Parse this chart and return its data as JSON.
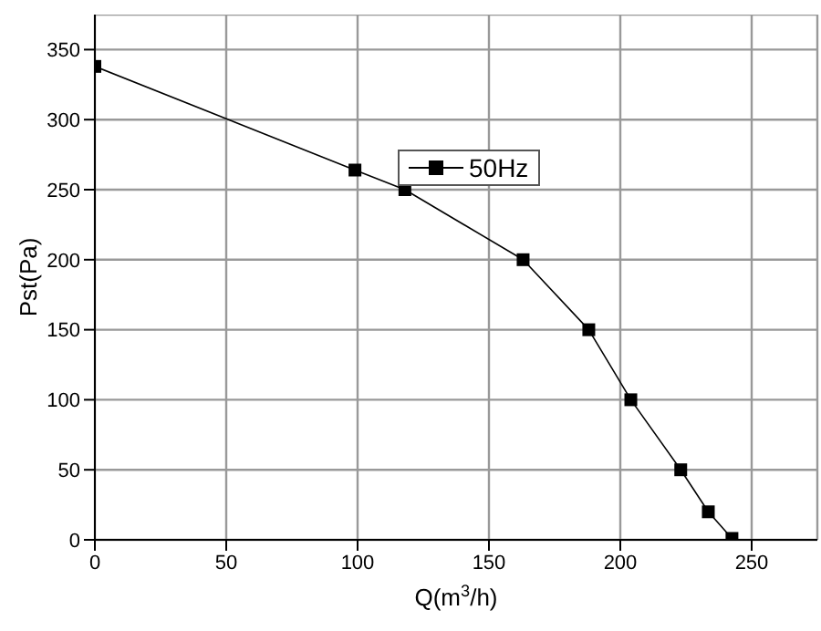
{
  "chart_data": {
    "type": "line",
    "xlabel": "Q(m$^{3}$/h)",
    "ylabel": "Pst(Pa)",
    "x": [
      0,
      99,
      118,
      163,
      188,
      204,
      223,
      233.5,
      242.5
    ],
    "series": [
      {
        "name": "50Hz",
        "color": "#000000",
        "values": [
          338,
          264,
          250,
          200,
          150,
          100,
          50,
          20,
          1
        ]
      }
    ],
    "xlim": [
      0,
      275
    ],
    "xticks": [
      0,
      50,
      100,
      150,
      200,
      250
    ],
    "ylim": [
      0,
      375
    ],
    "yticks": [
      0,
      50,
      100,
      150,
      200,
      250,
      300,
      350
    ],
    "grid": true,
    "legend": "top",
    "marker": "square",
    "line_style": "solid"
  }
}
